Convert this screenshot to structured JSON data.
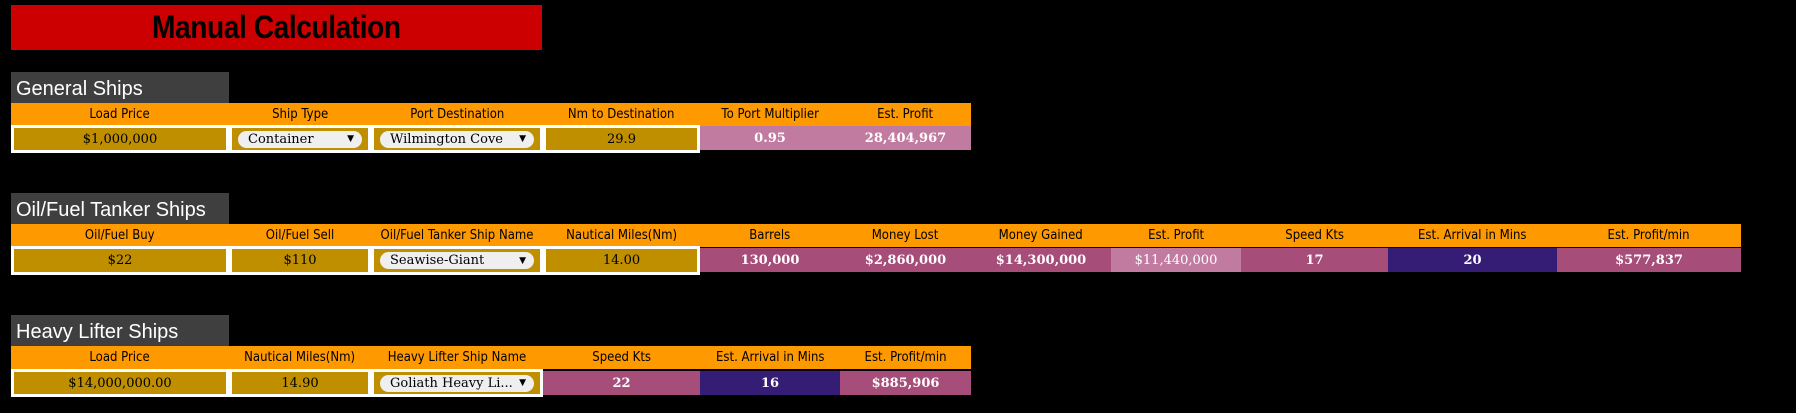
{
  "title": "Manual Calculation",
  "general": {
    "section_title": "General Ships",
    "headers": [
      "Load Price",
      "Ship Type",
      "Port Destination",
      "Nm to Destination",
      "To Port Multiplier",
      "Est. Profit"
    ],
    "load_price": "$1,000,000",
    "ship_type": "Container",
    "port_destination": "Wilmington Cove",
    "nm_to_destination": "29.9",
    "to_port_multiplier": "0.95",
    "est_profit": "28,404,967"
  },
  "oil": {
    "section_title": "Oil/Fuel Tanker Ships",
    "headers": [
      "Oil/Fuel Buy",
      "Oil/Fuel Sell",
      "Oil/Fuel Tanker Ship Name",
      "Nautical Miles(Nm)",
      "Barrels",
      "Money Lost",
      "Money Gained",
      "Est. Profit",
      "Speed Kts",
      "Est. Arrival in Mins",
      "Est. Profit/min"
    ],
    "buy": "$22",
    "sell": "$110",
    "ship_name": "Seawise-Giant",
    "nautical_miles": "14.00",
    "barrels": "130,000",
    "money_lost": "$2,860,000",
    "money_gained": "$14,300,000",
    "est_profit": "$11,440,000",
    "speed_kts": "17",
    "arrival_mins": "20",
    "profit_per_min": "$577,837"
  },
  "heavy": {
    "section_title": "Heavy Lifter Ships",
    "headers": [
      "Load Price",
      "Nautical Miles(Nm)",
      "Heavy Lifter Ship Name",
      "Speed Kts",
      "Est. Arrival in Mins",
      "Est. Profit/min"
    ],
    "load_price": "$14,000,000.00",
    "nautical_miles": "14.90",
    "ship_name": "Goliath Heavy Li...",
    "speed_kts": "22",
    "arrival_mins": "16",
    "profit_per_min": "$885,906"
  },
  "colors": {
    "title_bg": "#cc0000",
    "header_bg": "#ff9900",
    "input_bg": "#bf8f00",
    "output_pink": "#a64d79",
    "output_light_pink": "#c27ba0",
    "output_navy": "#351c75",
    "section_bg": "#3f3f3f"
  },
  "icons": {
    "dropdown": "chevron-down-icon"
  }
}
